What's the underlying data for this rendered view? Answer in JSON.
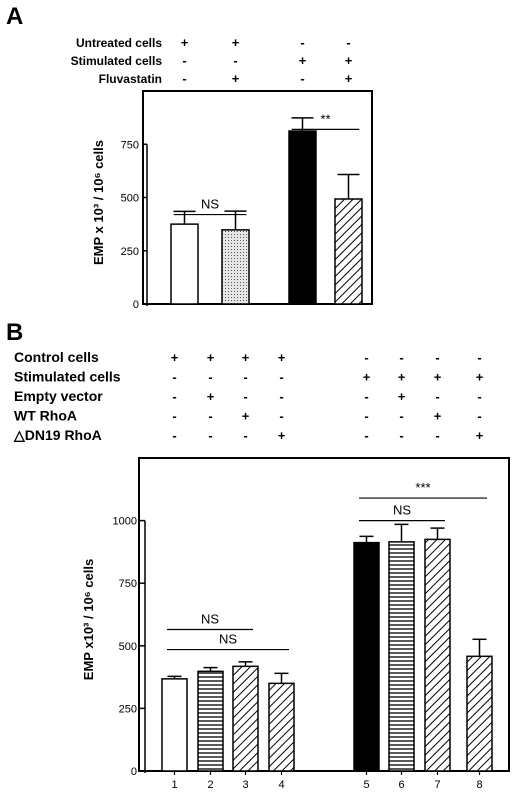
{
  "chart_data": [
    {
      "panel": "A",
      "type": "bar",
      "ylabel": "EMP x 10³ / 10⁶ cells",
      "ylim": [
        0,
        1000
      ],
      "yticks": [
        "0",
        "250",
        "500",
        "750"
      ],
      "grid": false,
      "conditions": [
        {
          "label": "Untreated cells",
          "signs": [
            "+",
            "+",
            "-",
            "-"
          ]
        },
        {
          "label": "Stimulated cells",
          "signs": [
            "-",
            "-",
            "+",
            "+"
          ]
        },
        {
          "label": "Fluvastatin",
          "signs": [
            "-",
            "+",
            "-",
            "+"
          ]
        }
      ],
      "bars": [
        {
          "value": 375,
          "error": 60,
          "fill": "white"
        },
        {
          "value": 348,
          "error": 88,
          "fill": "dotted"
        },
        {
          "value": 812,
          "error": 62,
          "fill": "black"
        },
        {
          "value": 493,
          "error": 115,
          "fill": "diagonal"
        }
      ],
      "significance": [
        {
          "label": "NS",
          "from": 1,
          "to": 2,
          "y": 420
        },
        {
          "label": "**",
          "from": 3,
          "to": 4,
          "y": 820
        }
      ]
    },
    {
      "panel": "B",
      "type": "bar",
      "ylabel": "EMP x10³ / 10⁶ cells",
      "ylim": [
        0,
        1250
      ],
      "yticks": [
        "0",
        "250",
        "500",
        "750",
        "1000"
      ],
      "grid": false,
      "categories": [
        "1",
        "2",
        "3",
        "4",
        "5",
        "6",
        "7",
        "8"
      ],
      "conditions": [
        {
          "label": "Control cells",
          "signs": [
            "+",
            "+",
            "+",
            "+",
            "-",
            "-",
            "-",
            "-"
          ]
        },
        {
          "label": "Stimulated cells",
          "signs": [
            "-",
            "-",
            "-",
            "-",
            "+",
            "+",
            "+",
            "+"
          ]
        },
        {
          "label": "Empty vector",
          "signs": [
            "-",
            "+",
            "-",
            "-",
            "-",
            "+",
            "-",
            "-"
          ]
        },
        {
          "label": "WT RhoA",
          "signs": [
            "-",
            "-",
            "+",
            "-",
            "-",
            "-",
            "+",
            "-"
          ]
        },
        {
          "label": "△DN19 RhoA",
          "signs": [
            "-",
            "-",
            "-",
            "+",
            "-",
            "-",
            "-",
            "+"
          ]
        }
      ],
      "bars": [
        {
          "value": 368,
          "error": 10,
          "fill": "white"
        },
        {
          "value": 398,
          "error": 15,
          "fill": "horizontal"
        },
        {
          "value": 418,
          "error": 18,
          "fill": "diagonal"
        },
        {
          "value": 350,
          "error": 40,
          "fill": "diagonal"
        },
        {
          "value": 912,
          "error": 25,
          "fill": "black"
        },
        {
          "value": 915,
          "error": 70,
          "fill": "horizontal"
        },
        {
          "value": 925,
          "error": 45,
          "fill": "diagonal"
        },
        {
          "value": 458,
          "error": 68,
          "fill": "diagonal"
        }
      ],
      "significance": [
        {
          "label": "NS",
          "from": 1,
          "to": 3,
          "y": 565
        },
        {
          "label": "NS",
          "from": 1,
          "to": 4,
          "y": 485
        },
        {
          "label": "NS",
          "from": 5,
          "to": 7,
          "y": 1000
        },
        {
          "label": "***",
          "from": 5,
          "to": 8,
          "y": 1090
        }
      ]
    }
  ]
}
